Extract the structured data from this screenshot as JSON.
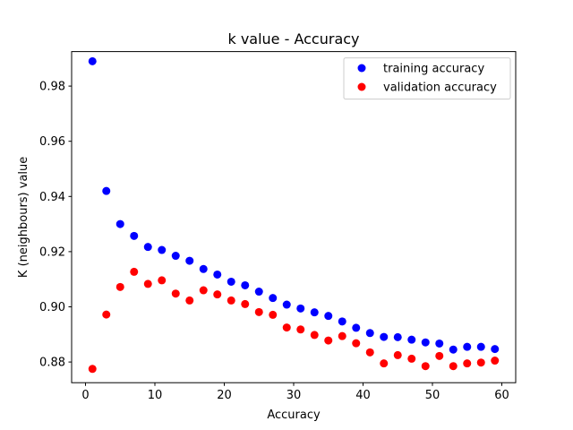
{
  "chart_data": {
    "type": "scatter",
    "title": "k value - Accuracy",
    "xlabel": "Accuracy",
    "ylabel": "K (neighbours) value",
    "xlim": [
      -2,
      62
    ],
    "ylim": [
      0.8725,
      0.9925
    ],
    "xticks": [
      0,
      10,
      20,
      30,
      40,
      50,
      60
    ],
    "yticks": [
      0.88,
      0.9,
      0.92,
      0.94,
      0.96,
      0.98
    ],
    "ytick_labels": [
      "0.88",
      "0.90",
      "0.92",
      "0.94",
      "0.96",
      "0.98"
    ],
    "grid": false,
    "legend": "top-right",
    "x": [
      1,
      3,
      5,
      7,
      9,
      11,
      13,
      15,
      17,
      19,
      21,
      23,
      25,
      27,
      29,
      31,
      33,
      35,
      37,
      39,
      41,
      43,
      45,
      47,
      49,
      51,
      53,
      55,
      57,
      59
    ],
    "series": [
      {
        "name": "training accuracy",
        "color": "#0000ff",
        "values": [
          0.989,
          0.942,
          0.93,
          0.9257,
          0.9217,
          0.9206,
          0.9185,
          0.9167,
          0.9137,
          0.9117,
          0.9091,
          0.9078,
          0.9055,
          0.9032,
          0.9008,
          0.8994,
          0.898,
          0.8967,
          0.8947,
          0.8924,
          0.8905,
          0.8891,
          0.889,
          0.8881,
          0.8871,
          0.8867,
          0.8845,
          0.8855,
          0.8855,
          0.8847
        ]
      },
      {
        "name": "validation accuracy",
        "color": "#ff0000",
        "values": [
          0.8775,
          0.8972,
          0.9072,
          0.9127,
          0.9083,
          0.9096,
          0.9048,
          0.9023,
          0.906,
          0.9045,
          0.9023,
          0.901,
          0.8981,
          0.8971,
          0.8925,
          0.8918,
          0.8898,
          0.8878,
          0.8894,
          0.8868,
          0.8835,
          0.8795,
          0.8825,
          0.8812,
          0.8785,
          0.8822,
          0.8785,
          0.8795,
          0.8798,
          0.8805
        ]
      }
    ]
  }
}
